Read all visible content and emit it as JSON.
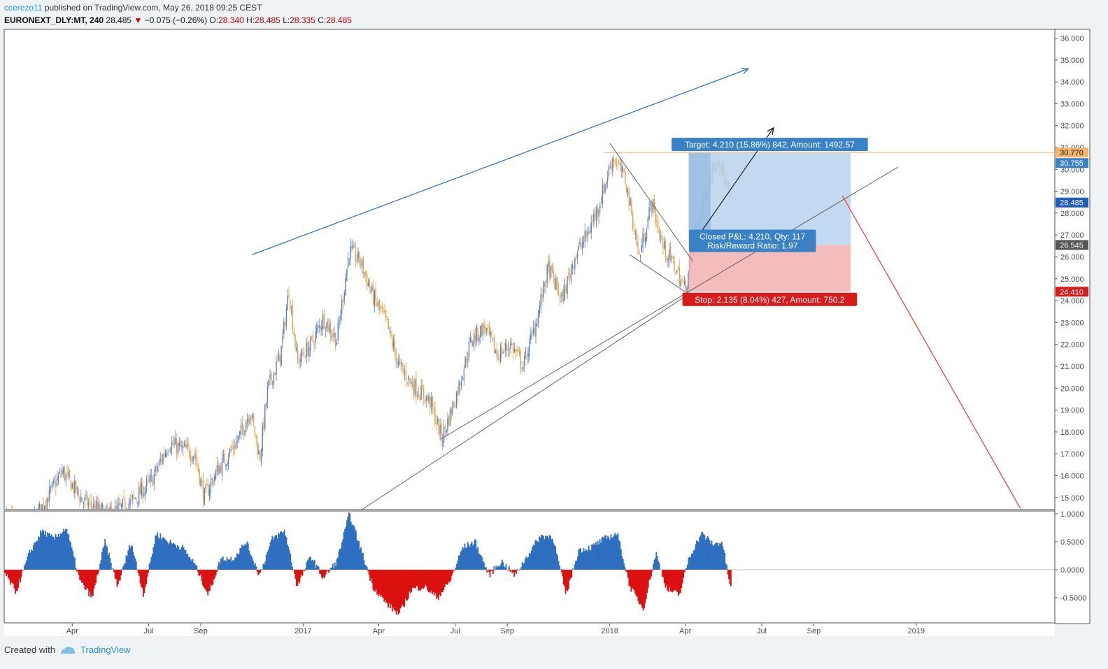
{
  "header": {
    "user": "ccerezo11",
    "published": "published on TradingView.com, May 26, 2018 09:25 CEST",
    "symbol": "EURONEXT_DLY:MT, 240",
    "last": "28.485",
    "change": "−0.075 (−0.26%)",
    "o_label": "O:",
    "o_value": "28.340",
    "h_label": "H:",
    "h_value": "28.485",
    "l_label": "L:",
    "l_value": "28.335",
    "c_label": "C:",
    "c_value": "28.485"
  },
  "footer": {
    "created": "Created with",
    "brand": "TradingView"
  },
  "colors": {
    "up_candle": "#5b7fc0",
    "down_candle": "#e6a23c",
    "osc_pos": "#2f6fc0",
    "osc_neg": "#dd1010",
    "target_zone": "#b9d2ec",
    "stop_zone": "#f2b0b0",
    "trend_blue": "#3a75c4",
    "trend_red": "#ff3030",
    "level_orange": "#f5b36b"
  },
  "chart_data": {
    "type": "candlestick",
    "timeframe": "240",
    "x_ticks": [
      "Apr",
      "Jul",
      "Sep",
      "2017",
      "Apr",
      "Jul",
      "Sep",
      "2018",
      "Apr",
      "Jul",
      "Sep",
      "2019"
    ],
    "x_tick_dates": [
      "2016-04-01",
      "2016-07-01",
      "2016-09-01",
      "2017-01-01",
      "2017-04-01",
      "2017-07-01",
      "2017-09-01",
      "2018-01-01",
      "2018-04-01",
      "2018-07-01",
      "2018-09-01",
      "2019-01-01"
    ],
    "x_range": [
      "2016-01-11",
      "2019-06-15"
    ],
    "y_ticks": [
      "15.000",
      "16.000",
      "17.000",
      "18.000",
      "19.000",
      "20.000",
      "21.000",
      "22.000",
      "23.000",
      "24.000",
      "25.000",
      "26.000",
      "27.000",
      "28.000",
      "29.000",
      "30.000",
      "31.000",
      "32.000",
      "33.000",
      "34.000",
      "35.000",
      "36.000"
    ],
    "ylim": [
      14.45,
      36.4
    ],
    "price_path": [
      [
        "2016-01-11",
        14.2
      ],
      [
        "2016-02-10",
        13.6
      ],
      [
        "2016-03-10",
        15.5
      ],
      [
        "2016-03-20",
        16.2
      ],
      [
        "2016-04-15",
        14.8
      ],
      [
        "2016-05-15",
        14.2
      ],
      [
        "2016-06-10",
        14.8
      ],
      [
        "2016-07-05",
        15.8
      ],
      [
        "2016-07-25",
        17.5
      ],
      [
        "2016-08-10",
        17.2
      ],
      [
        "2016-08-25",
        17.0
      ],
      [
        "2016-09-05",
        15.0
      ],
      [
        "2016-09-20",
        16.2
      ],
      [
        "2016-10-15",
        17.6
      ],
      [
        "2016-10-30",
        19.0
      ],
      [
        "2016-11-10",
        16.8
      ],
      [
        "2016-11-20",
        20.0
      ],
      [
        "2016-12-05",
        21.5
      ],
      [
        "2016-12-15",
        24.5
      ],
      [
        "2016-12-25",
        21.2
      ],
      [
        "2017-01-10",
        22.0
      ],
      [
        "2017-01-25",
        23.2
      ],
      [
        "2017-02-10",
        22.2
      ],
      [
        "2017-02-25",
        26.3
      ],
      [
        "2017-03-10",
        25.8
      ],
      [
        "2017-03-25",
        24.2
      ],
      [
        "2017-04-10",
        23.0
      ],
      [
        "2017-04-25",
        21.0
      ],
      [
        "2017-05-15",
        20.0
      ],
      [
        "2017-06-01",
        19.4
      ],
      [
        "2017-06-15",
        17.7
      ],
      [
        "2017-07-01",
        19.5
      ],
      [
        "2017-07-20",
        22.2
      ],
      [
        "2017-08-05",
        22.8
      ],
      [
        "2017-08-20",
        21.5
      ],
      [
        "2017-09-05",
        22.0
      ],
      [
        "2017-09-20",
        21.0
      ],
      [
        "2017-10-05",
        23.0
      ],
      [
        "2017-10-20",
        25.5
      ],
      [
        "2017-11-05",
        24.0
      ],
      [
        "2017-11-20",
        26.0
      ],
      [
        "2017-12-05",
        27.0
      ],
      [
        "2017-12-20",
        28.5
      ],
      [
        "2018-01-05",
        30.6
      ],
      [
        "2018-01-20",
        29.5
      ],
      [
        "2018-02-05",
        26.0
      ],
      [
        "2018-02-20",
        28.5
      ],
      [
        "2018-03-05",
        26.5
      ],
      [
        "2018-03-20",
        25.5
      ],
      [
        "2018-04-01",
        24.5
      ],
      [
        "2018-04-15",
        27.5
      ],
      [
        "2018-05-01",
        29.8
      ],
      [
        "2018-05-10",
        30.7
      ],
      [
        "2018-05-18",
        29.5
      ],
      [
        "2018-05-26",
        28.485
      ]
    ],
    "price_labels": [
      {
        "value": 30.77,
        "text": "30.770",
        "style": "orange"
      },
      {
        "value": 30.755,
        "text": "30.755",
        "style": "blue"
      },
      {
        "value": 28.485,
        "text": "28.485",
        "style": "darkblue"
      },
      {
        "value": 26.545,
        "text": "26.545",
        "style": "gray"
      },
      {
        "value": 24.41,
        "text": "24.410",
        "style": "red"
      }
    ],
    "horizontal_level": 30.77,
    "position": {
      "start": "2018-04-05",
      "end": "2018-10-15",
      "exit": "2018-05-01",
      "entry": 26.545,
      "target": 30.755,
      "stop": 24.41,
      "target_label": "Target: 4.210 (15.86%) 842, Amount: 1492.57",
      "pnl_label": "Closed P&L: 4.210, Qty: 117",
      "rr_label": "Risk/Reward Ratio: 1.97",
      "stop_label": "Stop: 2.135 (8.04%) 427, Amount: 750.2"
    },
    "trendlines": [
      {
        "style": "blue-arrow",
        "points": [
          [
            "2016-11-01",
            26.1
          ],
          [
            "2018-06-15",
            34.6
          ]
        ]
      },
      {
        "style": "gray",
        "points": [
          [
            "2017-03-10",
            14.4
          ],
          [
            "2018-04-01",
            24.2
          ]
        ]
      },
      {
        "style": "gray",
        "points": [
          [
            "2017-06-15",
            17.7
          ],
          [
            "2018-12-10",
            30.1
          ]
        ]
      },
      {
        "style": "gray",
        "points": [
          [
            "2018-01-01",
            31.2
          ],
          [
            "2018-04-10",
            25.8
          ]
        ]
      },
      {
        "style": "gray",
        "points": [
          [
            "2018-01-25",
            26.1
          ],
          [
            "2018-04-01",
            24.4
          ]
        ]
      },
      {
        "style": "black-arrow",
        "points": [
          [
            "2018-04-10",
            26.6
          ],
          [
            "2018-07-15",
            31.9
          ]
        ]
      },
      {
        "style": "red",
        "points": [
          [
            "2018-10-05",
            28.8
          ],
          [
            "2019-05-05",
            14.5
          ]
        ]
      }
    ],
    "oscillator": {
      "y_ticks": [
        "1.0000",
        "0.5000",
        "0.0000",
        "-0.5000"
      ],
      "ylim": [
        -0.95,
        1.05
      ],
      "path": [
        [
          "2016-01-11",
          -0.05
        ],
        [
          "2016-01-25",
          -0.4
        ],
        [
          "2016-02-10",
          0.3
        ],
        [
          "2016-02-25",
          0.7
        ],
        [
          "2016-03-10",
          0.55
        ],
        [
          "2016-03-25",
          0.75
        ],
        [
          "2016-04-10",
          -0.2
        ],
        [
          "2016-04-25",
          -0.5
        ],
        [
          "2016-05-10",
          0.5
        ],
        [
          "2016-05-25",
          -0.3
        ],
        [
          "2016-06-10",
          0.5
        ],
        [
          "2016-06-25",
          -0.45
        ],
        [
          "2016-07-10",
          0.65
        ],
        [
          "2016-07-25",
          0.5
        ],
        [
          "2016-08-10",
          0.4
        ],
        [
          "2016-08-25",
          0.1
        ],
        [
          "2016-09-10",
          -0.45
        ],
        [
          "2016-09-25",
          0.2
        ],
        [
          "2016-10-10",
          0.2
        ],
        [
          "2016-10-25",
          0.5
        ],
        [
          "2016-11-10",
          -0.1
        ],
        [
          "2016-11-25",
          0.55
        ],
        [
          "2016-12-10",
          0.7
        ],
        [
          "2016-12-25",
          -0.3
        ],
        [
          "2017-01-10",
          0.25
        ],
        [
          "2017-01-25",
          -0.15
        ],
        [
          "2017-02-10",
          0.15
        ],
        [
          "2017-02-25",
          1.0
        ],
        [
          "2017-03-10",
          0.4
        ],
        [
          "2017-03-25",
          -0.3
        ],
        [
          "2017-04-10",
          -0.6
        ],
        [
          "2017-04-25",
          -0.8
        ],
        [
          "2017-05-10",
          -0.35
        ],
        [
          "2017-05-25",
          -0.3
        ],
        [
          "2017-06-10",
          -0.5
        ],
        [
          "2017-06-25",
          -0.2
        ],
        [
          "2017-07-10",
          0.4
        ],
        [
          "2017-07-25",
          0.5
        ],
        [
          "2017-08-10",
          -0.1
        ],
        [
          "2017-08-25",
          0.15
        ],
        [
          "2017-09-10",
          -0.1
        ],
        [
          "2017-09-25",
          0.25
        ],
        [
          "2017-10-10",
          0.6
        ],
        [
          "2017-10-25",
          0.6
        ],
        [
          "2017-11-10",
          -0.45
        ],
        [
          "2017-11-25",
          0.35
        ],
        [
          "2017-12-10",
          0.4
        ],
        [
          "2017-12-25",
          0.55
        ],
        [
          "2018-01-10",
          0.65
        ],
        [
          "2018-01-25",
          -0.3
        ],
        [
          "2018-02-10",
          -0.7
        ],
        [
          "2018-02-25",
          0.3
        ],
        [
          "2018-03-10",
          -0.35
        ],
        [
          "2018-03-25",
          -0.45
        ],
        [
          "2018-04-05",
          0.2
        ],
        [
          "2018-04-20",
          0.65
        ],
        [
          "2018-05-05",
          0.45
        ],
        [
          "2018-05-15",
          0.5
        ],
        [
          "2018-05-22",
          -0.1
        ],
        [
          "2018-05-26",
          -0.4
        ]
      ]
    }
  }
}
